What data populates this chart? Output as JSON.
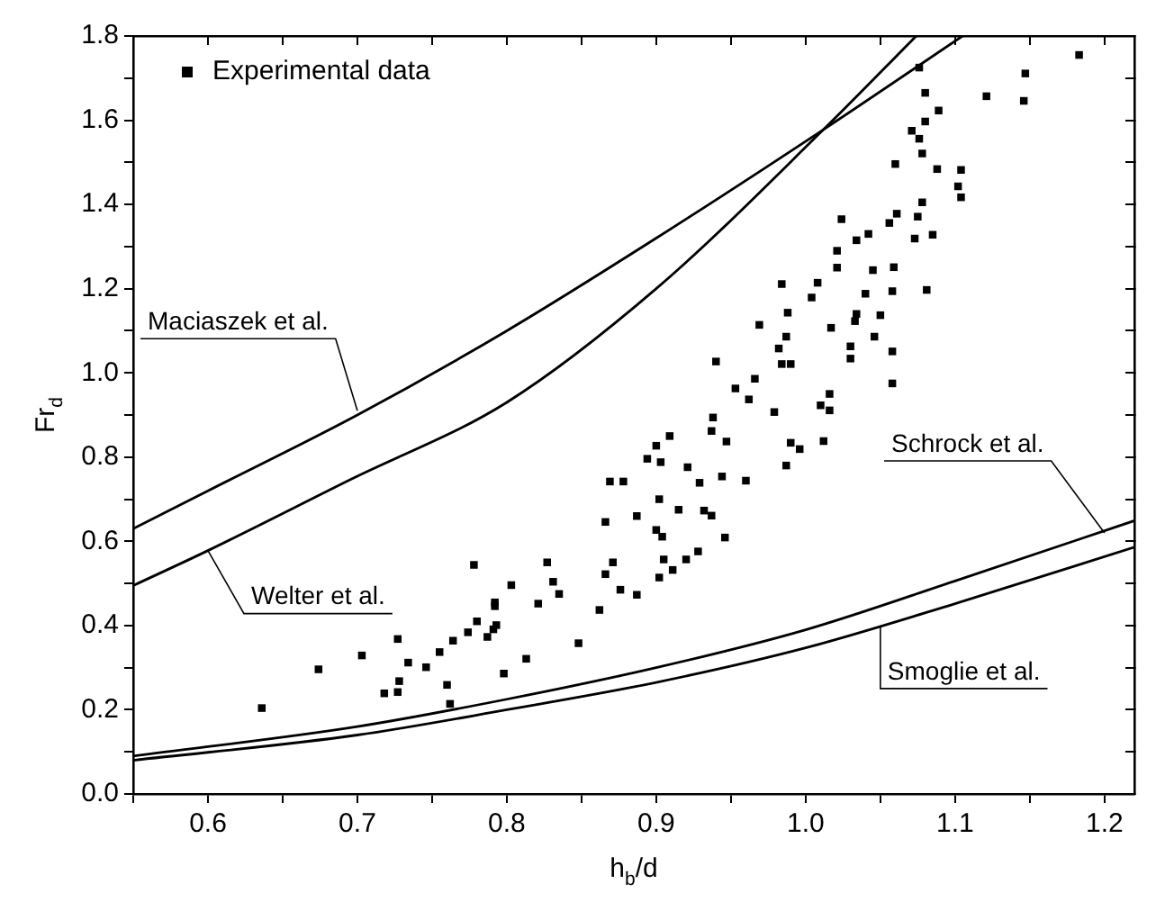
{
  "chart_data": {
    "type": "scatter",
    "xlabel": "h$_{b}$/d",
    "ylabel": "Fr$_{d}$",
    "xlim": [
      0.55,
      1.22
    ],
    "ylim": [
      0,
      1.8
    ],
    "xticks": [
      {
        "value": 0.55,
        "label": null
      },
      0.6,
      {
        "value": 0.65,
        "label": null
      },
      0.7,
      {
        "value": 0.75,
        "label": null
      },
      0.8,
      {
        "value": 0.85,
        "label": null
      },
      0.9,
      {
        "value": 0.95,
        "label": null
      },
      "1.0",
      {
        "value": 1.05,
        "label": null
      },
      1.1,
      {
        "value": 1.15,
        "label": null
      },
      1.2
    ],
    "yticks": [
      "0.0",
      {
        "value": 0.1,
        "label": null
      },
      0.2,
      {
        "value": 0.3,
        "label": null
      },
      0.4,
      {
        "value": 0.5,
        "label": null
      },
      0.6,
      {
        "value": 0.7,
        "label": null
      },
      0.8,
      {
        "value": 0.9,
        "label": null
      },
      "1.0",
      {
        "value": 1.1,
        "label": null
      },
      1.2,
      {
        "value": 1.3,
        "label": null
      },
      1.4,
      {
        "value": 1.5,
        "label": null
      },
      1.6,
      {
        "value": 1.7,
        "label": null
      },
      1.8
    ],
    "grid": false,
    "legend": "top left",
    "series": [
      {
        "name": "Experimental data",
        "marker": "square",
        "color": "#000000",
        "x": [
          0.636,
          0.674,
          0.703,
          0.718,
          0.727,
          0.727,
          0.728,
          0.734,
          0.746,
          0.755,
          0.76,
          0.762,
          0.764,
          0.774,
          0.778,
          0.78,
          0.787,
          0.791,
          0.792,
          0.792,
          0.793,
          0.798,
          0.803,
          0.813,
          0.821,
          0.827,
          0.831,
          0.835,
          0.848,
          0.862,
          0.866,
          0.866,
          0.869,
          0.871,
          0.876,
          0.878,
          0.887,
          0.887,
          0.902,
          0.9,
          0.904,
          0.905,
          0.902,
          0.911,
          0.915,
          0.92,
          0.928,
          0.929,
          0.932,
          0.937,
          0.944,
          0.946,
          0.96,
          0.987,
          1.183,
          1.076,
          1.147,
          1.121,
          1.146,
          1.08,
          1.089,
          1.08,
          1.071,
          1.076,
          1.078,
          1.06,
          1.088,
          1.104,
          1.102,
          1.104,
          1.078,
          1.024,
          1.061,
          1.056,
          1.075,
          1.042,
          1.034,
          1.073,
          1.085,
          1.021,
          1.021,
          1.045,
          1.059,
          0.984,
          1.008,
          1.004,
          1.04,
          1.058,
          1.081,
          0.988,
          1.034,
          1.05,
          1.033,
          0.969,
          1.017,
          0.987,
          1.046,
          0.982,
          1.03,
          1.058,
          1.03,
          0.984,
          0.99,
          0.94,
          0.966,
          0.953,
          1.058,
          0.962,
          1.016,
          0.979,
          1.01,
          1.016,
          0.938,
          0.937,
          0.909,
          0.947,
          0.99,
          0.996,
          1.012,
          0.9,
          0.894,
          0.903,
          0.921
        ],
        "values": [
          0.204,
          0.296,
          0.329,
          0.239,
          0.368,
          0.242,
          0.268,
          0.312,
          0.301,
          0.337,
          0.259,
          0.214,
          0.364,
          0.384,
          0.544,
          0.41,
          0.373,
          0.391,
          0.446,
          0.455,
          0.401,
          0.286,
          0.496,
          0.321,
          0.452,
          0.55,
          0.504,
          0.475,
          0.358,
          0.437,
          0.646,
          0.522,
          0.742,
          0.55,
          0.485,
          0.742,
          0.66,
          0.473,
          0.7,
          0.627,
          0.611,
          0.557,
          0.514,
          0.532,
          0.675,
          0.557,
          0.576,
          0.739,
          0.673,
          0.661,
          0.754,
          0.609,
          0.744,
          0.78,
          1.755,
          1.725,
          1.711,
          1.657,
          1.646,
          1.665,
          1.623,
          1.597,
          1.575,
          1.556,
          1.521,
          1.496,
          1.484,
          1.482,
          1.443,
          1.417,
          1.405,
          1.365,
          1.378,
          1.356,
          1.371,
          1.33,
          1.315,
          1.319,
          1.328,
          1.29,
          1.25,
          1.244,
          1.251,
          1.211,
          1.214,
          1.179,
          1.188,
          1.194,
          1.197,
          1.143,
          1.14,
          1.137,
          1.123,
          1.114,
          1.107,
          1.086,
          1.086,
          1.058,
          1.063,
          1.051,
          1.034,
          1.021,
          1.021,
          1.027,
          0.986,
          0.963,
          0.975,
          0.937,
          0.95,
          0.907,
          0.923,
          0.911,
          0.894,
          0.862,
          0.85,
          0.837,
          0.834,
          0.819,
          0.838,
          0.827,
          0.796,
          0.788,
          0.776
        ]
      },
      {
        "type": "line",
        "marker": "none",
        "line_style": "solid",
        "color": "#000000",
        "x": [
          0.55,
          0.6,
          0.7,
          0.8,
          0.9,
          1.012,
          1.105
        ],
        "values": [
          0.63,
          0.72,
          0.9,
          1.1,
          1.32,
          1.578,
          1.8
        ]
      },
      {
        "type": "line",
        "marker": "none",
        "line_style": "solid",
        "color": "#000000",
        "x": [
          0.55,
          0.6,
          0.695,
          0.8,
          0.9,
          1.012,
          1.074
        ],
        "values": [
          0.495,
          0.578,
          0.746,
          0.93,
          1.2,
          1.578,
          1.8
        ]
      },
      {
        "type": "line",
        "marker": "none",
        "line_style": "solid",
        "color": "#000000",
        "x": [
          0.55,
          0.7,
          0.8,
          0.9,
          1.0,
          1.1,
          1.22
        ],
        "values": [
          0.09,
          0.16,
          0.225,
          0.3,
          0.39,
          0.506,
          0.649
        ]
      },
      {
        "type": "line",
        "marker": "none",
        "line_style": "solid",
        "color": "#000000",
        "x": [
          0.55,
          0.7,
          0.8,
          0.9,
          1.0,
          1.1,
          1.22
        ],
        "values": [
          0.08,
          0.14,
          0.2,
          0.265,
          0.347,
          0.452,
          0.586
        ]
      }
    ],
    "annotations": [
      {
        "text": "Maciaszek et al.",
        "x": 0.7,
        "y": 0.91
      },
      {
        "text": "Welter et al.",
        "x": 0.6,
        "y": 0.578
      },
      {
        "text": "Schrock et al.",
        "x": 1.2,
        "y": 0.62
      },
      {
        "text": "Smoglie et al.",
        "x": 1.05,
        "y": 0.4
      }
    ]
  }
}
